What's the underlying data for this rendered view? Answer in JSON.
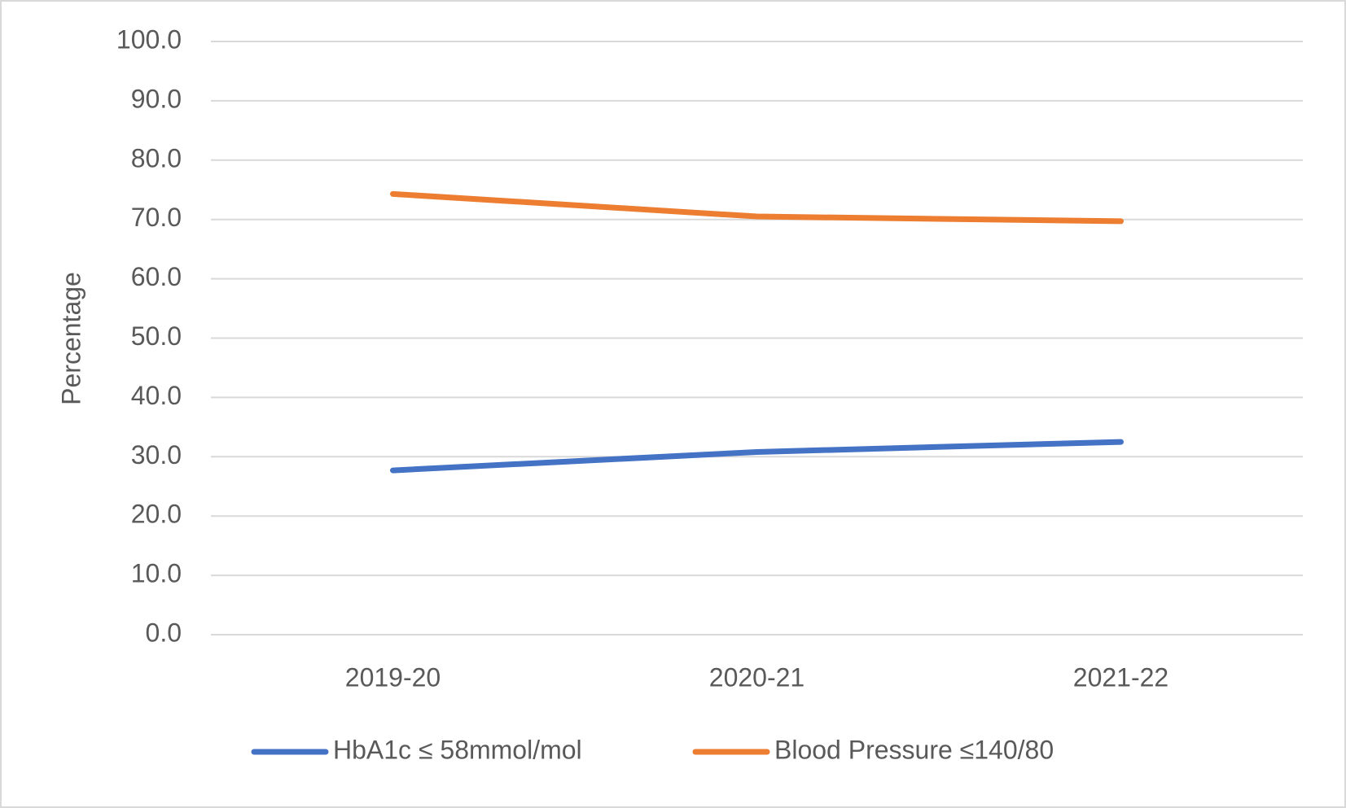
{
  "chart_data": {
    "type": "line",
    "y_label": "Percentage",
    "categories": [
      "2019-20",
      "2020-21",
      "2021-22"
    ],
    "series": [
      {
        "name": "HbA1c ≤ 58mmol/mol",
        "color": "#4472c4",
        "values": [
          27.7,
          30.8,
          32.5
        ]
      },
      {
        "name": "Blood Pressure ≤140/80",
        "color": "#ed7d31",
        "values": [
          74.3,
          70.5,
          69.7
        ]
      }
    ],
    "ylim": [
      0,
      100
    ],
    "yticks": [
      {
        "value": 0,
        "label": "0.0"
      },
      {
        "value": 10,
        "label": "10.0"
      },
      {
        "value": 20,
        "label": "20.0"
      },
      {
        "value": 30,
        "label": "30.0"
      },
      {
        "value": 40,
        "label": "40.0"
      },
      {
        "value": 50,
        "label": "50.0"
      },
      {
        "value": 60,
        "label": "60.0"
      },
      {
        "value": 70,
        "label": "70.0"
      },
      {
        "value": 80,
        "label": "80.0"
      },
      {
        "value": 90,
        "label": "90.0"
      },
      {
        "value": 100,
        "label": "100.0"
      }
    ],
    "grid": true,
    "legend": "bottom"
  }
}
